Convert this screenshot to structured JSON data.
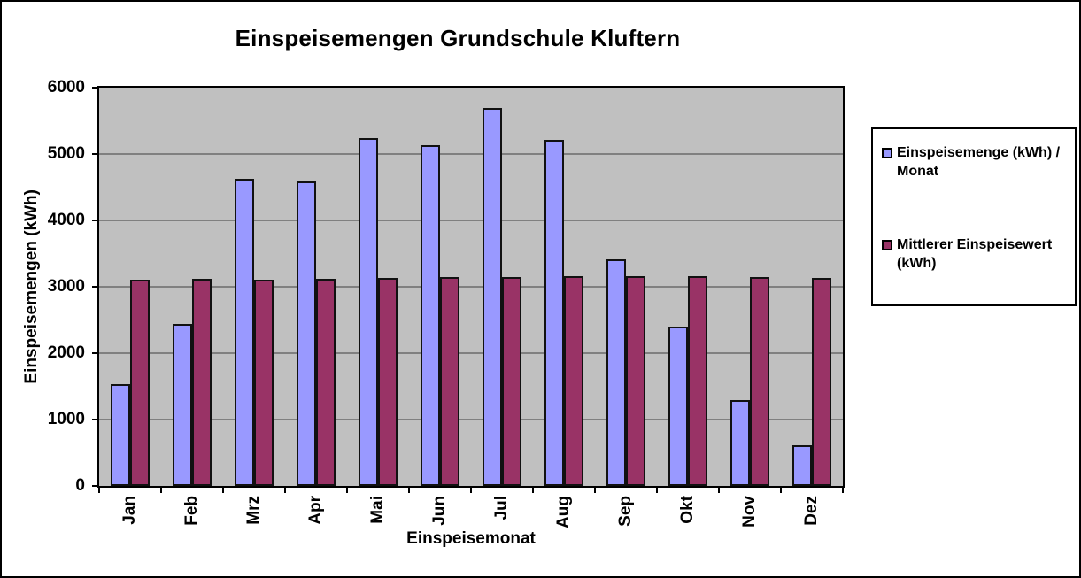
{
  "chart_data": {
    "type": "bar",
    "title": "Einspeisemengen Grundschule Kluftern",
    "xlabel": "Einspeisemonat",
    "ylabel": "Einspeisemengen (kWh)",
    "categories": [
      "Jan",
      "Feb",
      "Mrz",
      "Apr",
      "Mai",
      "Jun",
      "Jul",
      "Aug",
      "Sep",
      "Okt",
      "Nov",
      "Dez"
    ],
    "series": [
      {
        "name": "Einspeisemenge (kWh) / Monat",
        "color": "#9999FF",
        "values": [
          1530,
          2440,
          4630,
          4590,
          5240,
          5140,
          5700,
          5220,
          3420,
          2400,
          1290,
          620
        ]
      },
      {
        "name": "Mittlerer Einspeisewert (kWh)",
        "color": "#993366",
        "values": [
          3110,
          3115,
          3110,
          3120,
          3130,
          3145,
          3150,
          3160,
          3160,
          3160,
          3150,
          3130
        ]
      }
    ],
    "ylim": [
      0,
      6000
    ],
    "ytick_step": 1000,
    "yticks": [
      0,
      1000,
      2000,
      3000,
      4000,
      5000,
      6000
    ],
    "grid": true,
    "legend_position": "right",
    "legend_entries": [
      {
        "lines": [
          "Einspeisemenge (kWh) /",
          "Monat"
        ],
        "color": "#9999FF"
      },
      {
        "lines": [
          "Mittlerer Einspeisewert",
          "(kWh)"
        ],
        "color": "#993366"
      }
    ],
    "colors": {
      "plot_background": "#C0C0C0",
      "gridline": "#808080",
      "bar_border": "#111111",
      "axis": "#000000"
    }
  }
}
